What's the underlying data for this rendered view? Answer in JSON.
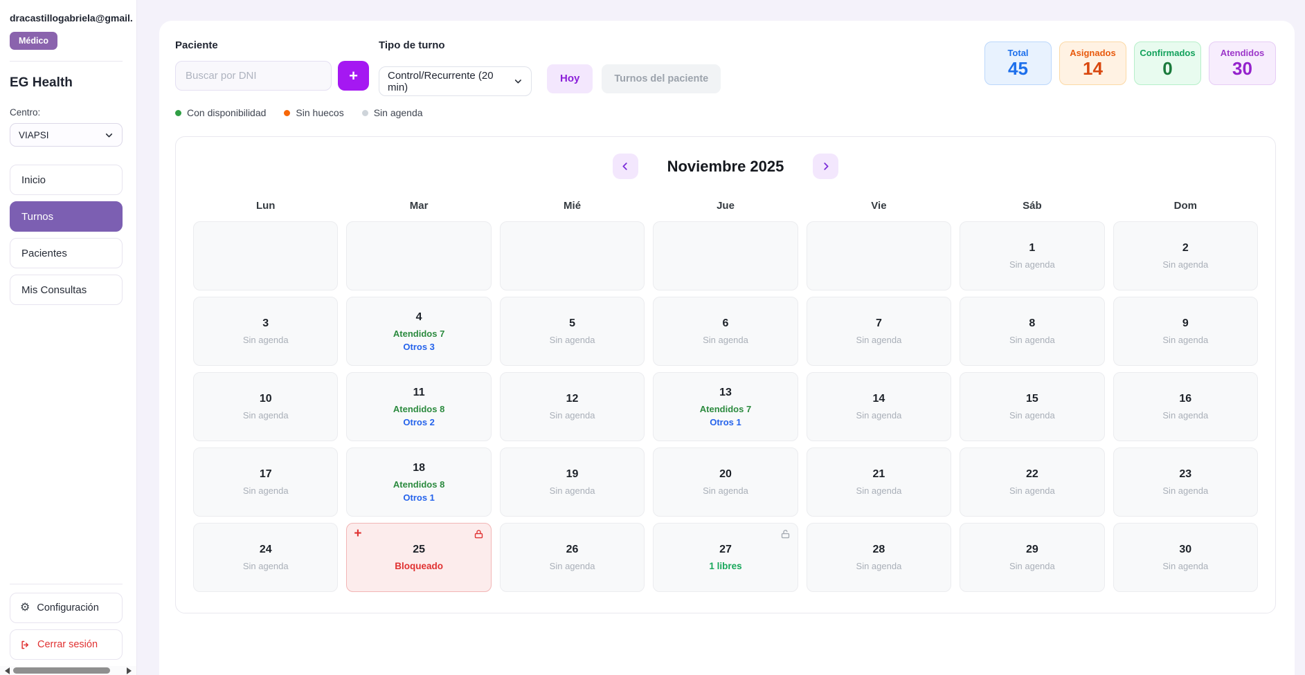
{
  "user": {
    "email": "dracastillogabriela@gmail.com",
    "role_badge": "Médico"
  },
  "sidebar": {
    "app_name": "EG Health",
    "center_label": "Centro:",
    "center_value": "VIAPSI",
    "items": [
      {
        "label": "Inicio",
        "active": false
      },
      {
        "label": "Turnos",
        "active": true
      },
      {
        "label": "Pacientes",
        "active": false
      },
      {
        "label": "Mis Consultas",
        "active": false
      }
    ],
    "settings_label": "Configuración",
    "logout_label": "Cerrar sesión"
  },
  "toolbar": {
    "patient_label": "Paciente",
    "search_placeholder": "Buscar por DNI",
    "add_button": "+",
    "type_label": "Tipo de turno",
    "type_value": "Control/Recurrente (20 min)",
    "today_button": "Hoy",
    "patient_appointments_button": "Turnos del paciente"
  },
  "legend": [
    {
      "label": "Con disponibilidad",
      "color": "#2F9E44"
    },
    {
      "label": "Sin huecos",
      "color": "#F76707"
    },
    {
      "label": "Sin agenda",
      "color": "#CED4DA"
    }
  ],
  "stats": [
    {
      "label": "Total",
      "value": "45",
      "bg": "#E8F2FE",
      "border": "#BBD7FB",
      "label_color": "#1D6FEB",
      "value_color": "#1D6FEB"
    },
    {
      "label": "Asignados",
      "value": "14",
      "bg": "#FFF2E3",
      "border": "#FBD9A5",
      "label_color": "#E8590C",
      "value_color": "#D9480F"
    },
    {
      "label": "Confirmados",
      "value": "0",
      "bg": "#E8FBEF",
      "border": "#B6EFC9",
      "label_color": "#12A15B",
      "value_color": "#1A7A3C"
    },
    {
      "label": "Atendidos",
      "value": "30",
      "bg": "#F7EDFD",
      "border": "#E6CCF5",
      "label_color": "#9C36C9",
      "value_color": "#9422CC"
    }
  ],
  "calendar": {
    "title": "Noviembre 2025",
    "day_headers": [
      "Lun",
      "Mar",
      "Mié",
      "Jue",
      "Vie",
      "Sáb",
      "Dom"
    ],
    "blocked_plus_glyph": "+",
    "cells": [
      {
        "type": "empty"
      },
      {
        "type": "empty"
      },
      {
        "type": "empty"
      },
      {
        "type": "empty"
      },
      {
        "type": "empty"
      },
      {
        "type": "none",
        "day": "1",
        "status": "Sin agenda"
      },
      {
        "type": "none",
        "day": "2",
        "status": "Sin agenda"
      },
      {
        "type": "none",
        "day": "3",
        "status": "Sin agenda"
      },
      {
        "type": "busy",
        "day": "4",
        "attended": "Atendidos 7",
        "others": "Otros 3"
      },
      {
        "type": "none",
        "day": "5",
        "status": "Sin agenda"
      },
      {
        "type": "none",
        "day": "6",
        "status": "Sin agenda"
      },
      {
        "type": "none",
        "day": "7",
        "status": "Sin agenda"
      },
      {
        "type": "none",
        "day": "8",
        "status": "Sin agenda"
      },
      {
        "type": "none",
        "day": "9",
        "status": "Sin agenda"
      },
      {
        "type": "none",
        "day": "10",
        "status": "Sin agenda"
      },
      {
        "type": "busy",
        "day": "11",
        "attended": "Atendidos 8",
        "others": "Otros 2"
      },
      {
        "type": "none",
        "day": "12",
        "status": "Sin agenda"
      },
      {
        "type": "busy",
        "day": "13",
        "attended": "Atendidos 7",
        "others": "Otros 1"
      },
      {
        "type": "none",
        "day": "14",
        "status": "Sin agenda"
      },
      {
        "type": "none",
        "day": "15",
        "status": "Sin agenda"
      },
      {
        "type": "none",
        "day": "16",
        "status": "Sin agenda"
      },
      {
        "type": "none",
        "day": "17",
        "status": "Sin agenda"
      },
      {
        "type": "busy",
        "day": "18",
        "attended": "Atendidos 8",
        "others": "Otros 1"
      },
      {
        "type": "none",
        "day": "19",
        "status": "Sin agenda"
      },
      {
        "type": "none",
        "day": "20",
        "status": "Sin agenda"
      },
      {
        "type": "none",
        "day": "21",
        "status": "Sin agenda"
      },
      {
        "type": "none",
        "day": "22",
        "status": "Sin agenda"
      },
      {
        "type": "none",
        "day": "23",
        "status": "Sin agenda"
      },
      {
        "type": "none",
        "day": "24",
        "status": "Sin agenda"
      },
      {
        "type": "blocked",
        "day": "25",
        "status": "Bloqueado"
      },
      {
        "type": "none",
        "day": "26",
        "status": "Sin agenda"
      },
      {
        "type": "free",
        "day": "27",
        "status": "1 libres"
      },
      {
        "type": "none",
        "day": "28",
        "status": "Sin agenda"
      },
      {
        "type": "none",
        "day": "29",
        "status": "Sin agenda"
      },
      {
        "type": "none",
        "day": "30",
        "status": "Sin agenda"
      }
    ]
  },
  "icons": {
    "gear": "⚙"
  },
  "colors": {
    "accent_purple": "#7C5FB2",
    "bright_purple": "#A518F2",
    "danger_red": "#E03131"
  }
}
